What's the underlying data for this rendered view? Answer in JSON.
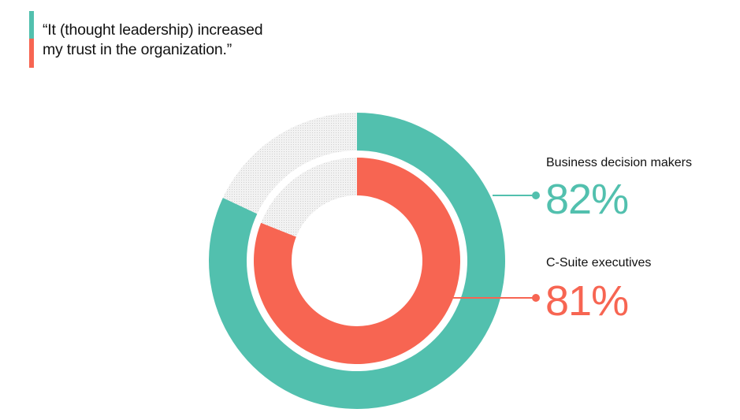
{
  "title": {
    "line1": "“It (thought leadership) increased",
    "line2": "my trust in the organization.”"
  },
  "colors": {
    "teal": "#52C0AE",
    "coral": "#F76552",
    "remainder": "#E4E4E4"
  },
  "chart_data": {
    "type": "pie",
    "subtype": "nested donut",
    "series": [
      {
        "name": "Business decision makers",
        "value": 82,
        "label": "82%",
        "color": "#52C0AE",
        "ring": "outer"
      },
      {
        "name": "C-Suite executives",
        "value": 81,
        "label": "81%",
        "color": "#F76552",
        "ring": "inner"
      }
    ],
    "max": 100
  }
}
